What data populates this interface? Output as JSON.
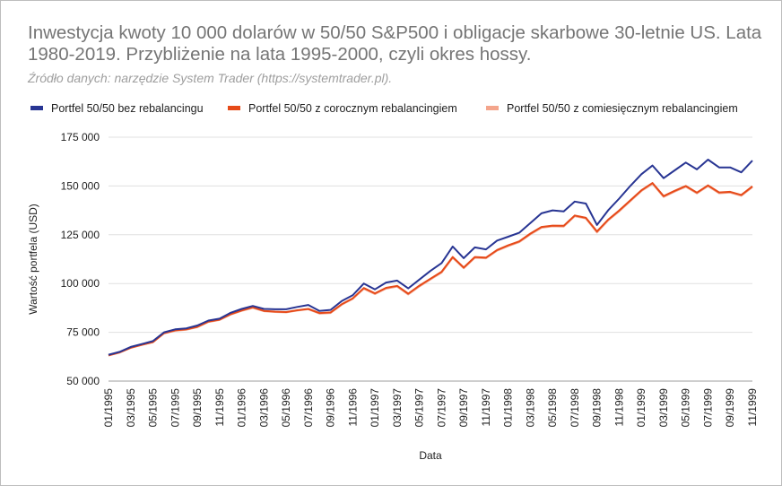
{
  "title": "Inwestycja kwoty 10 000 dolarów w 50/50 S&P500 i obligacje skarbowe 30-letnie US. Lata 1980-2019. Przybliżenie na lata 1995-2000, czyli okres hossy.",
  "subtitle": "Źródło danych: narzędzie System Trader (https://systemtrader.pl).",
  "chart_data": {
    "type": "line",
    "xlabel": "Data",
    "ylabel": "Wartość portfela (USD)",
    "ylim": [
      50000,
      175000
    ],
    "yticks": [
      50000,
      75000,
      100000,
      125000,
      150000,
      175000
    ],
    "ytick_labels": [
      "50 000",
      "75 000",
      "100 000",
      "125 000",
      "150 000",
      "175 000"
    ],
    "x_tick_labels": [
      "01/1995",
      "03/1995",
      "05/1995",
      "07/1995",
      "09/1995",
      "11/1995",
      "01/1996",
      "03/1996",
      "05/1996",
      "07/1996",
      "09/1996",
      "11/1996",
      "01/1997",
      "03/1997",
      "05/1997",
      "07/1997",
      "09/1997",
      "11/1997",
      "01/1998",
      "03/1998",
      "05/1998",
      "07/1998",
      "09/1998",
      "11/1998",
      "01/1999",
      "03/1999",
      "05/1999",
      "07/1999",
      "09/1999",
      "11/1999"
    ],
    "grid": "horizontal",
    "legend_position": "top-left",
    "series": [
      {
        "name": "Portfel 50/50 bez rebalancingu",
        "color": "#283593",
        "values": [
          63500,
          65000,
          67500,
          69000,
          70500,
          75000,
          76500,
          77000,
          78500,
          81000,
          82000,
          85000,
          87000,
          88500,
          87000,
          86800,
          86800,
          88000,
          89000,
          86000,
          86500,
          91000,
          94000,
          100000,
          97000,
          100500,
          101500,
          97500,
          102000,
          106500,
          110500,
          119000,
          113000,
          118500,
          117500,
          122000,
          124000,
          126000,
          131000,
          136000,
          137500,
          137000,
          142000,
          141000,
          130000,
          137500,
          143500,
          150000,
          156000,
          160500,
          154000,
          158000,
          162000,
          158500,
          163500,
          159500,
          159500,
          157000,
          163000
        ]
      },
      {
        "name": "Portfel 50/50 z corocznym rebalancingiem",
        "color": "#e64a19",
        "values": [
          63200,
          64700,
          67100,
          68600,
          70000,
          74600,
          76000,
          76500,
          77800,
          80500,
          81500,
          84300,
          86200,
          87800,
          86000,
          85600,
          85400,
          86300,
          87000,
          84900,
          85200,
          89400,
          92400,
          97700,
          95000,
          97800,
          98800,
          94800,
          98900,
          102500,
          106000,
          113600,
          108200,
          113600,
          113300,
          117200,
          119600,
          121600,
          125600,
          129000,
          129700,
          129600,
          134900,
          133700,
          126700,
          132700,
          137400,
          142600,
          147800,
          151500,
          144800,
          147500,
          150000,
          146600,
          150300,
          146700,
          147000,
          145400,
          149800
        ]
      },
      {
        "name": "Portfel 50/50 z comiesięcznym rebalancingiem",
        "color": "#f4a58c",
        "values": [
          63100,
          64600,
          67000,
          68500,
          69900,
          74400,
          75800,
          76300,
          77600,
          80300,
          81300,
          84100,
          86000,
          87500,
          85800,
          85400,
          85200,
          86100,
          86800,
          84600,
          84900,
          89100,
          92100,
          97300,
          94600,
          97400,
          98400,
          94400,
          98500,
          102100,
          105600,
          113200,
          107800,
          113200,
          112900,
          116800,
          119200,
          121200,
          125200,
          128600,
          129300,
          129200,
          134500,
          133300,
          126200,
          132300,
          137000,
          142200,
          147400,
          151100,
          144400,
          147100,
          149600,
          146200,
          149900,
          146300,
          146600,
          145000,
          149400
        ]
      }
    ]
  }
}
